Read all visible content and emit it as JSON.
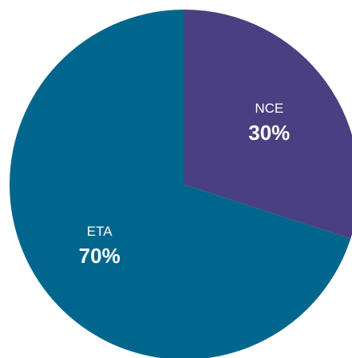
{
  "chart_data": {
    "type": "pie",
    "title": "",
    "legend": "none",
    "slices": [
      {
        "label": "NCE",
        "value": 30,
        "value_label": "30%",
        "color": "#4a3f80"
      },
      {
        "label": "ETA",
        "value": 70,
        "value_label": "70%",
        "color": "#01668e"
      }
    ]
  }
}
